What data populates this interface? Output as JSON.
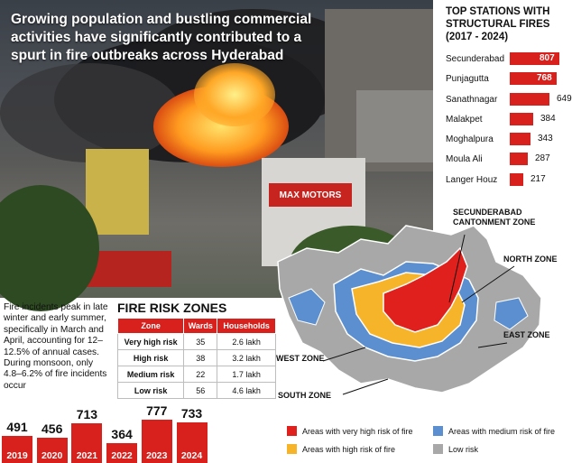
{
  "headline": "Growing population and bustling commercial activities have significantly contributed to a spurt in fire outbreaks across Hyderabad",
  "photo_sign": "MAX MOTORS",
  "top_stations": {
    "title": "TOP STATIONS WITH STRUCTURAL FIRES (2017 - 2024)",
    "items": [
      {
        "name": "Secunderabad",
        "value": "807"
      },
      {
        "name": "Punjagutta",
        "value": "768"
      },
      {
        "name": "Sanathnagar",
        "value": "649"
      },
      {
        "name": "Malakpet",
        "value": "384"
      },
      {
        "name": "Moghalpura",
        "value": "343"
      },
      {
        "name": "Moula Ali",
        "value": "287"
      },
      {
        "name": "Langer Houz",
        "value": "217"
      }
    ]
  },
  "fire_incidents_text": "Fire incidents peak in late winter and early summer, specifically in March and April, accounting for 12–12.5% of annual cases. During monsoon, only 4.8–6.2% of fire incidents occur",
  "fire_risk_zones": {
    "title": "FIRE RISK ZONES",
    "headers": [
      "Zone",
      "Wards",
      "Households"
    ],
    "rows": [
      [
        "Very high risk",
        "35",
        "2.6 lakh"
      ],
      [
        "High risk",
        "38",
        "3.2 lakh"
      ],
      [
        "Medium risk",
        "22",
        "1.7 lakh"
      ],
      [
        "Low risk",
        "56",
        "4.6 lakh"
      ]
    ]
  },
  "yearly": {
    "items": [
      {
        "year": "2019",
        "value": "491"
      },
      {
        "year": "2020",
        "value": "456"
      },
      {
        "year": "2021",
        "value": "713"
      },
      {
        "year": "2022",
        "value": "364"
      },
      {
        "year": "2023",
        "value": "777"
      },
      {
        "year": "2024",
        "value": "733"
      }
    ]
  },
  "map": {
    "labels": {
      "secunderabad": "SECUNDERABAD CANTONMENT ZONE",
      "north": "NORTH ZONE",
      "east": "EAST ZONE",
      "west": "WEST ZONE",
      "south": "SOUTH ZONE"
    }
  },
  "legend": {
    "very_high": "Areas with very high risk of fire",
    "high": "Areas with high risk of fire",
    "medium": "Areas with medium risk of fire",
    "low": "Low risk"
  },
  "colors": {
    "very_high": "#e0201c",
    "high": "#f6b42a",
    "medium": "#5b8fd0",
    "low": "#a8a8a8"
  }
}
